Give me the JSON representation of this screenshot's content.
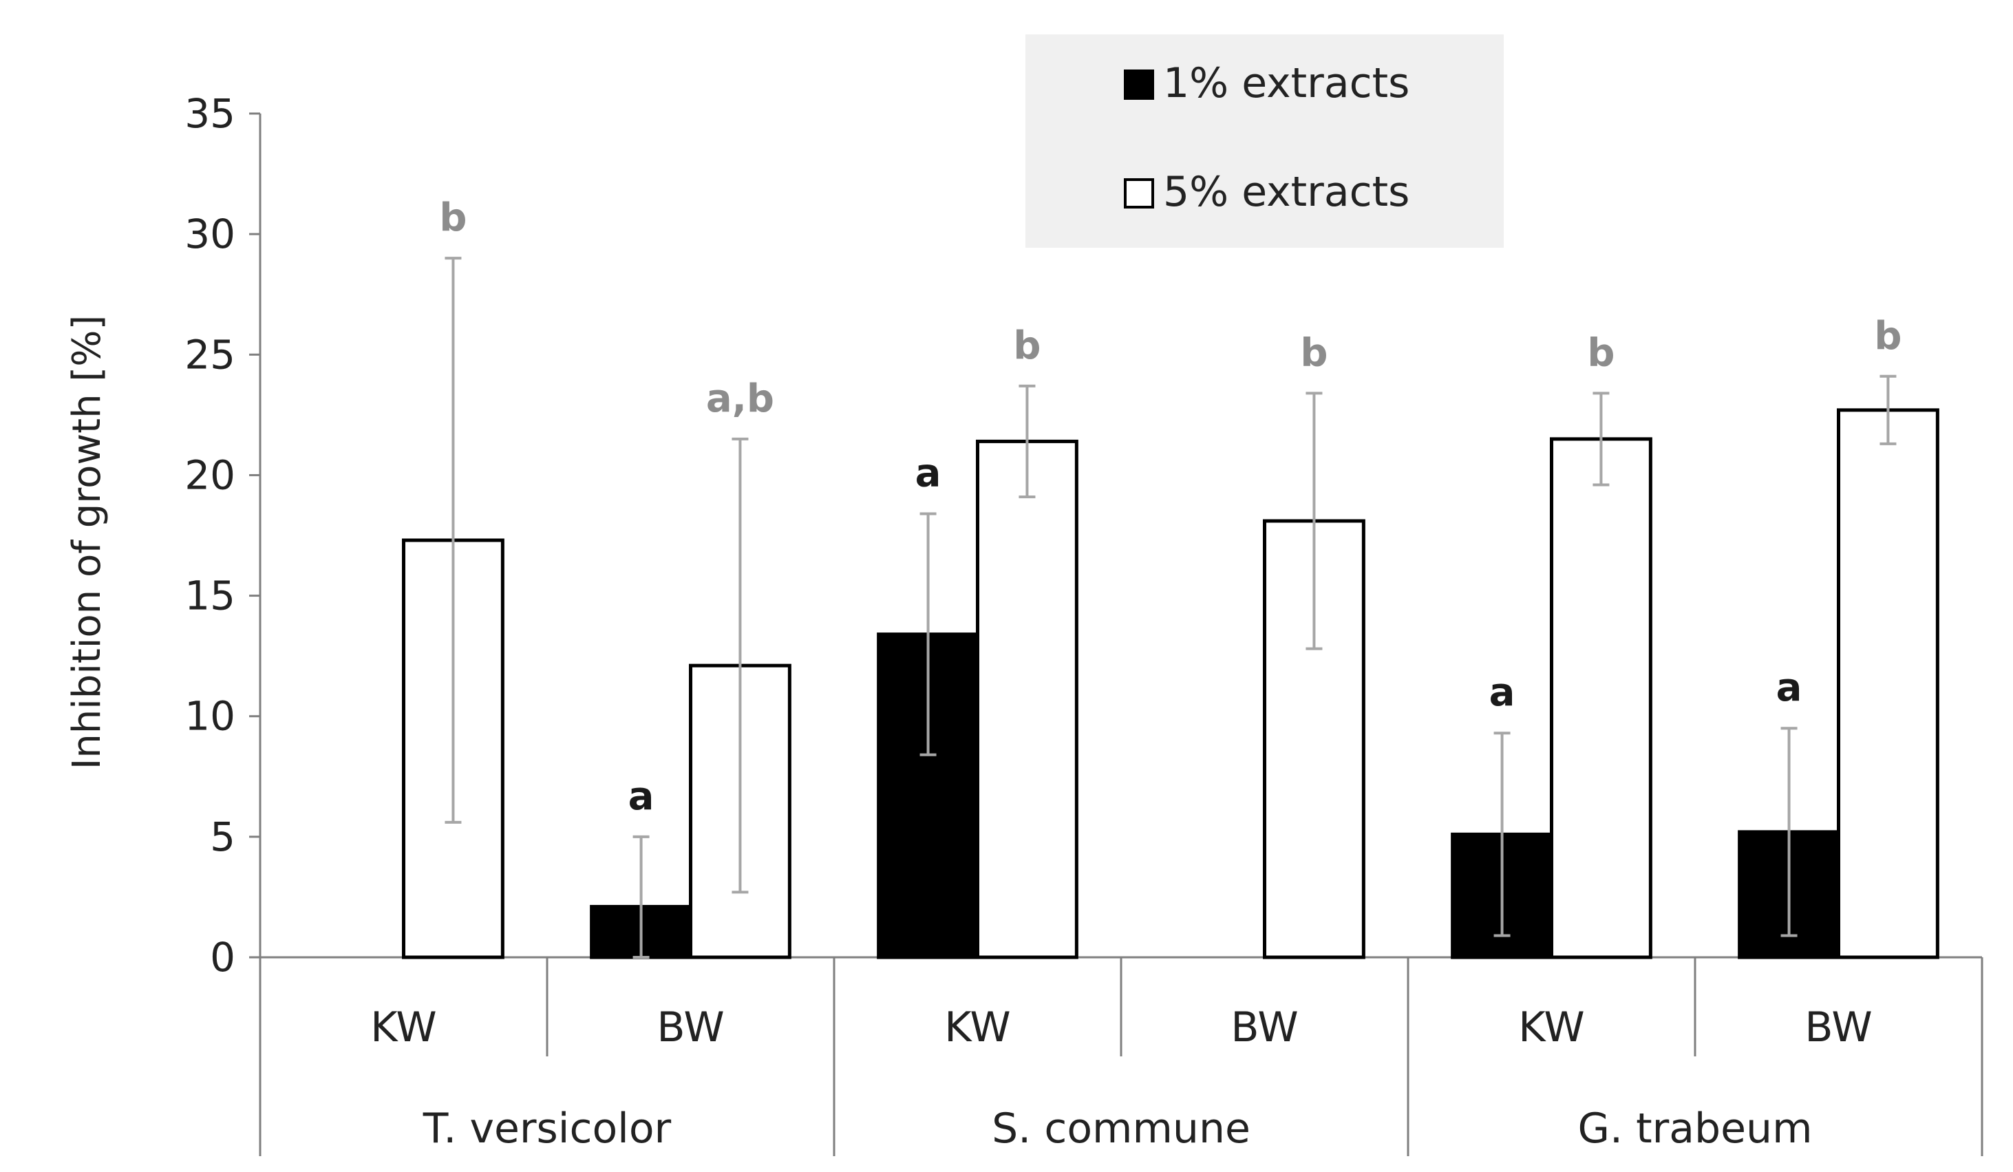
{
  "chart_data": {
    "type": "bar",
    "title": "",
    "xlabel": "",
    "ylabel": "Inhibition of growth [%]",
    "ylim": [
      0,
      35
    ],
    "yticks": [
      0,
      5,
      10,
      15,
      20,
      25,
      30,
      35
    ],
    "grid": false,
    "legend_position": "top-center",
    "groups": [
      {
        "name": "T. versicolor",
        "subcategories": [
          "KW",
          "BW"
        ]
      },
      {
        "name": "S. commune",
        "subcategories": [
          "KW",
          "BW"
        ]
      },
      {
        "name": "G. trabeum",
        "subcategories": [
          "KW",
          "BW"
        ]
      }
    ],
    "categories": [
      "KW",
      "BW",
      "KW",
      "BW",
      "KW",
      "BW"
    ],
    "series": [
      {
        "name": "1% extracts",
        "color": "#000000",
        "values": [
          null,
          2.1,
          13.4,
          null,
          5.1,
          5.2
        ],
        "errors": [
          null,
          2.9,
          5.0,
          null,
          4.2,
          4.3
        ],
        "sig_labels": [
          "",
          "a",
          "a",
          "",
          "a",
          "a"
        ],
        "sig_color": "#1a1a1a"
      },
      {
        "name": "5% extracts",
        "color": "#ffffff",
        "values": [
          17.3,
          12.1,
          21.4,
          18.1,
          21.5,
          22.7
        ],
        "errors": [
          11.7,
          9.4,
          2.3,
          5.3,
          1.9,
          1.4
        ],
        "sig_labels": [
          "b",
          "a,b",
          "b",
          "b",
          "b",
          "b"
        ],
        "sig_color": "#8c8c8c"
      }
    ],
    "legend_background": "#f0f0f0",
    "error_bar_color": "#a6a6a6",
    "axis_color": "#7f7f7f"
  }
}
